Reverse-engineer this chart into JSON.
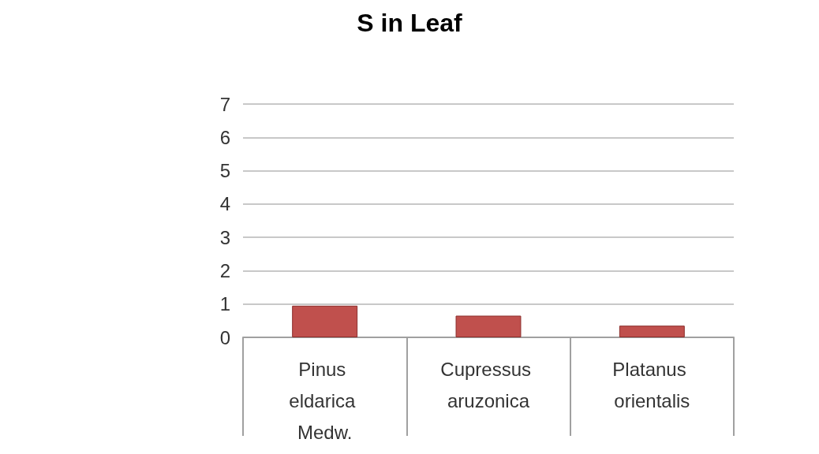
{
  "chart_data": {
    "type": "bar",
    "title": "S in Leaf",
    "categories": [
      "Pinus eldarica Medw.",
      "Cupressus aruzonica",
      "Platanus orientalis"
    ],
    "values": [
      0.95,
      0.65,
      0.35
    ],
    "color": "#c0504d",
    "ylim": [
      0,
      7
    ],
    "yticks": [
      0,
      1,
      2,
      3,
      4,
      5,
      6,
      7
    ],
    "grid": "y"
  }
}
